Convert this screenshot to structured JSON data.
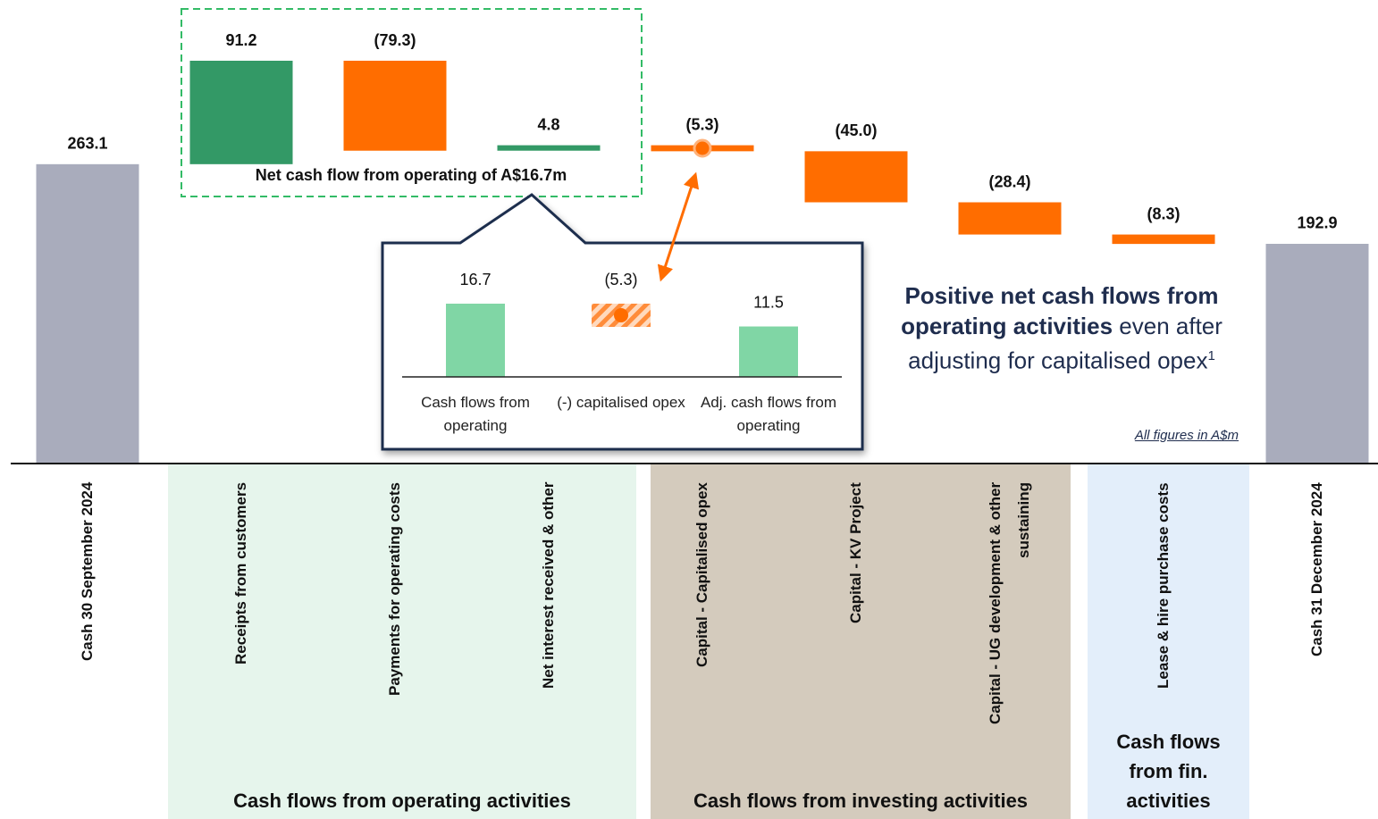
{
  "chart_data": {
    "type": "waterfall",
    "categories": [
      "Cash 30 September 2024",
      "Receipts from customers",
      "Payments for operating costs",
      "Net interest received & other",
      "Capital - Capitalised opex",
      "Capital - KV Project",
      "Capital - UG development & other sustaining",
      "Lease & hire purchase costs",
      "Cash 31 December 2024"
    ],
    "values": [
      263.1,
      91.2,
      -79.3,
      4.8,
      -5.3,
      -45.0,
      -28.4,
      -8.3,
      192.9
    ],
    "value_labels": [
      "263.1",
      "91.2",
      "(79.3)",
      "4.8",
      "(5.3)",
      "(45.0)",
      "(28.4)",
      "(8.3)",
      "192.9"
    ],
    "colors": [
      "#a9acbc",
      "#339966",
      "#ff6d00",
      "#339966",
      "#ff6d00",
      "#ff6d00",
      "#ff6d00",
      "#ff6d00",
      "#a9acbc"
    ],
    "groups": [
      {
        "label": "Cash flows from operating activities",
        "color": "#e6f5ec"
      },
      {
        "label": "Cash flows from investing activities",
        "color": "#d4cbbd"
      },
      {
        "label": "Cash flows from fin. activities",
        "color": "#e3eefa"
      }
    ],
    "annotation": "Net cash flow from operating of A$16.7m",
    "note": "All figures in A$m",
    "callout": {
      "bold": "Positive net cash flows from operating activities",
      "text": "even after adjusting for capitalised opex",
      "superscript": "1"
    },
    "inset": {
      "type": "waterfall",
      "categories": [
        "Cash flows from operating",
        "(-) capitalised opex",
        "Adj. cash flows from operating"
      ],
      "values": [
        16.7,
        -5.3,
        11.5
      ],
      "value_labels": [
        "16.7",
        "(5.3)",
        "11.5"
      ],
      "colors": [
        "#80d6a5",
        "#ff8c3a",
        "#80d6a5"
      ]
    }
  }
}
